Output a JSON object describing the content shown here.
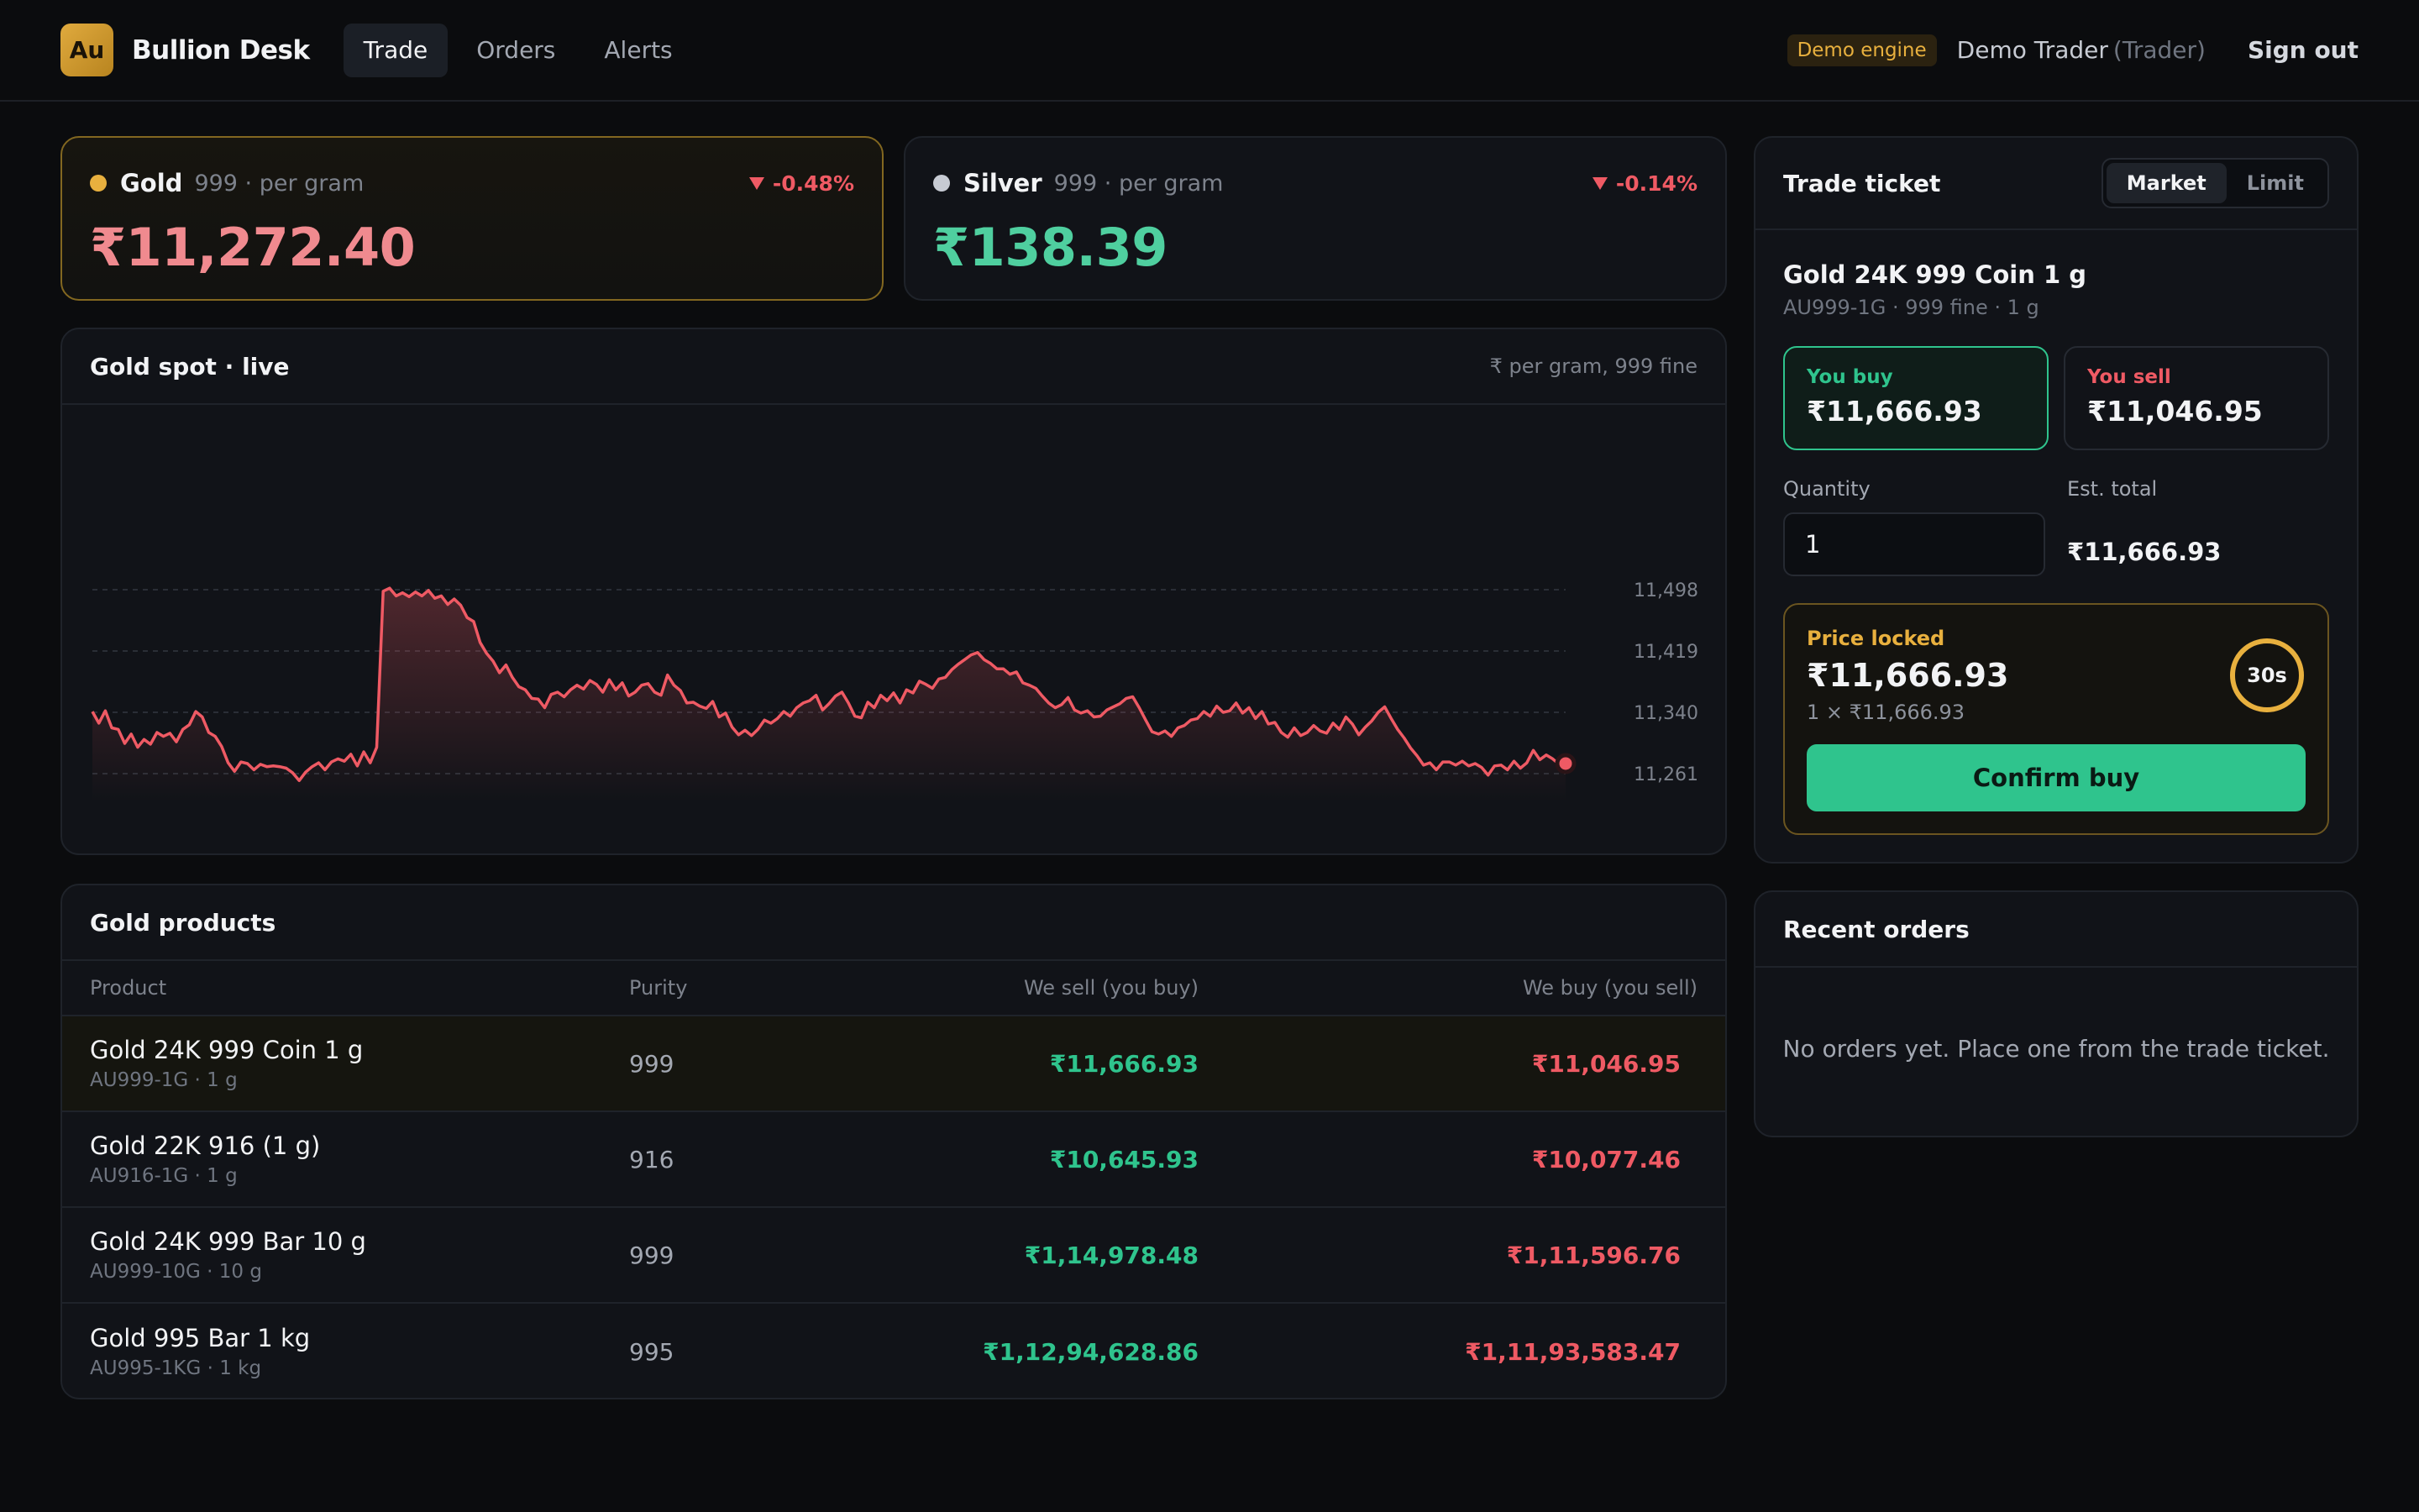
{
  "header": {
    "logo": "Au",
    "brand": "Bullion Desk",
    "nav": [
      {
        "label": "Trade",
        "active": true
      },
      {
        "label": "Orders",
        "active": false
      },
      {
        "label": "Alerts",
        "active": false
      }
    ],
    "badge": "Demo engine",
    "user_name": "Demo Trader",
    "user_role": "(Trader)",
    "signout": "Sign out"
  },
  "spot": {
    "gold": {
      "name": "Gold",
      "sub": "999 · per gram",
      "change": "-0.48%",
      "price": "₹11,272.40",
      "dot_color": "#e8b03e",
      "price_color": "#f08a8f"
    },
    "silver": {
      "name": "Silver",
      "sub": "999 · per gram",
      "change": "-0.14%",
      "price": "₹138.39",
      "dot_color": "#c7cbd3",
      "price_color": "#4fcf9f"
    }
  },
  "chart": {
    "title": "Gold spot · live",
    "note": "₹ per gram, 999 fine",
    "line_color": "#ef5a64"
  },
  "chart_data": {
    "type": "area",
    "y_ticks": [
      11498,
      11419,
      11340,
      11261
    ],
    "y_tick_labels": [
      "11,498",
      "11,419",
      "11,340",
      "11,261"
    ],
    "ylim": [
      11232,
      11520
    ],
    "grid": true,
    "legend": "none",
    "values": [
      11341,
      11326,
      11342,
      11320,
      11318,
      11300,
      11312,
      11295,
      11305,
      11299,
      11314,
      11309,
      11313,
      11302,
      11318,
      11324,
      11341,
      11334,
      11314,
      11309,
      11296,
      11275,
      11264,
      11276,
      11274,
      11266,
      11273,
      11270,
      11271,
      11270,
      11268,
      11262,
      11252,
      11263,
      11270,
      11275,
      11266,
      11276,
      11280,
      11277,
      11286,
      11271,
      11289,
      11275,
      11295,
      11496,
      11500,
      11490,
      11494,
      11489,
      11495,
      11490,
      11497,
      11487,
      11490,
      11479,
      11486,
      11478,
      11462,
      11457,
      11430,
      11416,
      11406,
      11391,
      11401,
      11385,
      11373,
      11369,
      11358,
      11357,
      11346,
      11363,
      11366,
      11360,
      11369,
      11375,
      11370,
      11381,
      11376,
      11366,
      11382,
      11369,
      11378,
      11361,
      11366,
      11375,
      11377,
      11366,
      11362,
      11388,
      11375,
      11368,
      11352,
      11353,
      11348,
      11345,
      11354,
      11334,
      11339,
      11321,
      11311,
      11317,
      11310,
      11318,
      11330,
      11326,
      11332,
      11341,
      11335,
      11346,
      11352,
      11355,
      11362,
      11343,
      11351,
      11361,
      11366,
      11352,
      11335,
      11333,
      11353,
      11346,
      11362,
      11355,
      11365,
      11352,
      11369,
      11365,
      11380,
      11376,
      11371,
      11383,
      11385,
      11395,
      11402,
      11408,
      11414,
      11417,
      11408,
      11403,
      11396,
      11396,
      11389,
      11392,
      11378,
      11375,
      11371,
      11361,
      11352,
      11346,
      11350,
      11359,
      11343,
      11339,
      11342,
      11334,
      11335,
      11343,
      11347,
      11351,
      11358,
      11360,
      11346,
      11330,
      11315,
      11312,
      11316,
      11309,
      11320,
      11323,
      11330,
      11332,
      11341,
      11335,
      11348,
      11340,
      11342,
      11352,
      11339,
      11346,
      11332,
      11341,
      11325,
      11327,
      11314,
      11308,
      11320,
      11310,
      11314,
      11323,
      11316,
      11313,
      11326,
      11318,
      11334,
      11325,
      11311,
      11321,
      11329,
      11340,
      11347,
      11332,
      11318,
      11307,
      11294,
      11284,
      11272,
      11275,
      11266,
      11276,
      11276,
      11272,
      11277,
      11271,
      11274,
      11269,
      11259,
      11271,
      11272,
      11266,
      11277,
      11268,
      11275,
      11291,
      11279,
      11285,
      11280,
      11273,
      11274
    ]
  },
  "products": {
    "title": "Gold products",
    "columns": [
      "Product",
      "Purity",
      "We sell (you buy)",
      "We buy (you sell)"
    ],
    "rows": [
      {
        "name": "Gold 24K 999 Coin 1 g",
        "sku": "AU999-1G · 1 g",
        "purity": "999",
        "sell": "₹11,666.93",
        "buy": "₹11,046.95",
        "selected": true
      },
      {
        "name": "Gold 22K 916 (1 g)",
        "sku": "AU916-1G · 1 g",
        "purity": "916",
        "sell": "₹10,645.93",
        "buy": "₹10,077.46",
        "selected": false
      },
      {
        "name": "Gold 24K 999 Bar 10 g",
        "sku": "AU999-10G · 10 g",
        "purity": "999",
        "sell": "₹1,14,978.48",
        "buy": "₹1,11,596.76",
        "selected": false
      },
      {
        "name": "Gold 995 Bar 1 kg",
        "sku": "AU995-1KG · 1 kg",
        "purity": "995",
        "sell": "₹1,12,94,628.86",
        "buy": "₹1,11,93,583.47",
        "selected": false
      }
    ]
  },
  "ticket": {
    "title": "Trade ticket",
    "tabs": [
      {
        "label": "Market",
        "active": true
      },
      {
        "label": "Limit",
        "active": false
      }
    ],
    "product_name": "Gold 24K 999 Coin 1 g",
    "product_sku": "AU999-1G · 999 fine · 1 g",
    "buy_label": "You buy",
    "buy_price": "₹11,666.93",
    "sell_label": "You sell",
    "sell_price": "₹11,046.95",
    "qty_label": "Quantity",
    "qty_value": "1",
    "est_label": "Est. total",
    "est_value": "₹11,666.93",
    "lock_label": "Price locked",
    "lock_price": "₹11,666.93",
    "lock_sub": "1 × ₹11,666.93",
    "timer": "30s",
    "confirm": "Confirm buy"
  },
  "orders": {
    "title": "Recent orders",
    "empty": "No orders yet. Place one from the trade ticket."
  }
}
